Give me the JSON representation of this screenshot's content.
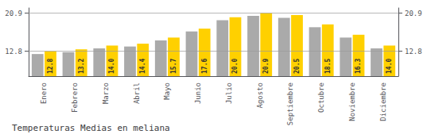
{
  "chart_data": {
    "type": "bar",
    "title": "Temperaturas Medias en meliana",
    "categories": [
      "Enero",
      "Febrero",
      "Marzo",
      "Abril",
      "Mayo",
      "Junio",
      "Julio",
      "Agosto",
      "Septiembre",
      "Octubre",
      "Noviembre",
      "Diciembre"
    ],
    "series": [
      {
        "color": "#AAAAAA",
        "values": [
          12.2,
          12.6,
          13.4,
          13.8,
          15.1,
          17.0,
          19.4,
          20.3,
          19.9,
          17.9,
          15.7,
          13.4
        ]
      },
      {
        "color": "#FFD000",
        "values": [
          12.8,
          13.2,
          14.0,
          14.4,
          15.7,
          17.6,
          20.0,
          20.9,
          20.5,
          18.5,
          16.3,
          14.0
        ],
        "data_labels": true,
        "value_labels": [
          "12.8",
          "13.2",
          "14.0",
          "14.4",
          "15.7",
          "17.6",
          "20.0",
          "20.9",
          "20.5",
          "18.5",
          "16.3",
          "14.0"
        ]
      }
    ],
    "ylim": [
      7.5,
      22.0
    ],
    "yticks": [
      12.8,
      20.9
    ],
    "y2lim": [
      7.5,
      22.0
    ],
    "y2ticks": [
      12.8,
      20.9
    ],
    "grid": true
  }
}
